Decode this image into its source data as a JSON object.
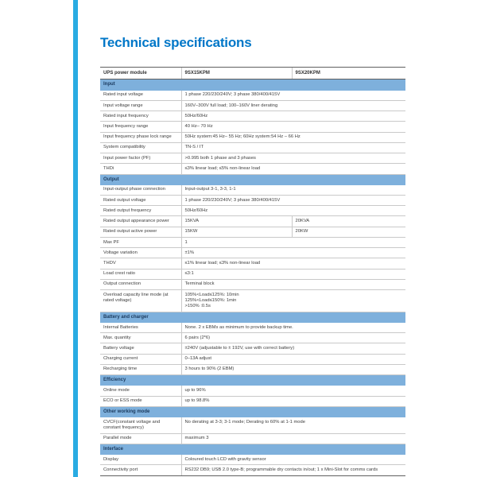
{
  "page": {
    "title": "Technical specifications",
    "colors": {
      "accent_stripe": "#29ABE2",
      "title": "#0077C8",
      "section_band": "#7EB0DC",
      "section_text": "#1B3A5E"
    }
  },
  "table": {
    "header": [
      "UPS power module",
      "9SX15KPM",
      "9SX20KPM"
    ],
    "sections": [
      {
        "label": "Input",
        "rows": [
          {
            "label": "Rated input voltage",
            "value": "1 phase 220/230/240V; 3 phase 380/400/415V"
          },
          {
            "label": "Input voltage range",
            "value": "160V–300V full load; 100–160V liner derating"
          },
          {
            "label": "Rated input frequency",
            "value": "50Hz/60Hz"
          },
          {
            "label": "Input frequency range",
            "value": "40 Hz– 70 Hz"
          },
          {
            "label": "Input frequency phase lock range",
            "value": "50Hz system:45 Hz– 55 Hz; 60Hz system:54 Hz – 66 Hz"
          },
          {
            "label": "System compatibility",
            "value": "TN-S / IT"
          },
          {
            "label": "Input power factor (PF)",
            "value": ">0.995 both 1 phase and 3 phases"
          },
          {
            "label": "THDi",
            "value": "≤3% linear load; ≤5% non-linear load"
          }
        ]
      },
      {
        "label": "Output",
        "rows": [
          {
            "label": "Input-output phase connection",
            "value": "Input-output 3-1, 3-3, 1-1"
          },
          {
            "label": "Rated output voltage",
            "value": "1 phase 220/230/240V; 3 phase 380/400/415V"
          },
          {
            "label": "Rated output frequency",
            "value": "50Hz/60Hz"
          },
          {
            "label": "Rated output appearance power",
            "value": "15KVA",
            "value2": "20KVA"
          },
          {
            "label": "Rated output active power",
            "value": "15KW",
            "value2": "20KW"
          },
          {
            "label": "Max PF",
            "value": "1"
          },
          {
            "label": "Voltage variation",
            "value": "±1%"
          },
          {
            "label": "THDV",
            "value": "≤1% linear load; ≤3% non-linear load"
          },
          {
            "label": "Load crest ratio",
            "value": "≤3:1"
          },
          {
            "label": "Output connection",
            "value": "Terminal block"
          },
          {
            "label": "Overload capacity line mode (at rated voltage)",
            "value": "105%<Load≤125%: 10min\n125%<Load≤150%: 1min\n>150% :0.5s"
          }
        ]
      },
      {
        "label": "Battery and charger",
        "rows": [
          {
            "label": "Internal Batteries",
            "value": "None. 2 x EBMs as minimum to provide backup time."
          },
          {
            "label": "Max. quantity",
            "value": "6 pairs (2*6)"
          },
          {
            "label": "Battery voltage",
            "value": "±240V (adjustable to ± 192V, use with correct battery)"
          },
          {
            "label": "Charging current",
            "value": "0–13A adjust"
          },
          {
            "label": "Recharging time",
            "value": "3 hours to 90% (2 EBM)"
          }
        ]
      },
      {
        "label": "Efficiency",
        "rows": [
          {
            "label": "Online mode",
            "value": "up to 96%"
          },
          {
            "label": "ECO or ESS mode",
            "value": "up to 98.8%"
          }
        ]
      },
      {
        "label": "Other working mode",
        "rows": [
          {
            "label": "CVCF(constant voltage and constant frequency)",
            "value": "No derating at 3-3; 3-1 mode; Derating to 60% at 1-1 mode"
          },
          {
            "label": "Parallel mode",
            "value": "maximum 3"
          }
        ]
      },
      {
        "label": "Interface",
        "rows": [
          {
            "label": "Display",
            "value": "Coloured touch LCD with gravity sensor"
          },
          {
            "label": "Connectivity port",
            "value": "RS232 DB9; USB 2.0 type-B; programmable dry contacts in/out; 1 x Mini-Slot for comms cards"
          }
        ]
      }
    ]
  }
}
